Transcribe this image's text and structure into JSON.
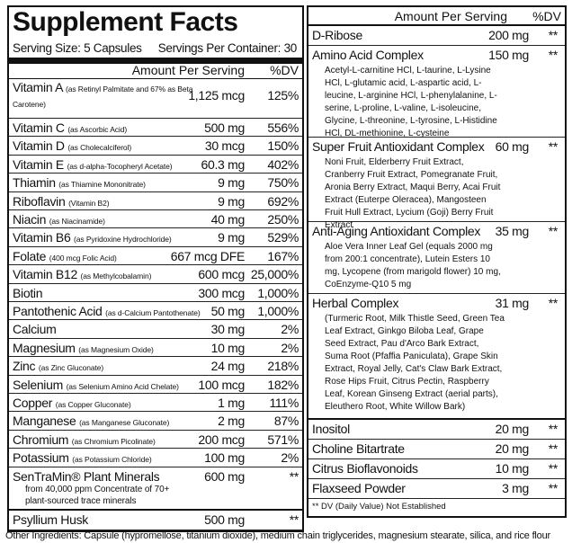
{
  "left": {
    "title": "Supplement Facts",
    "serving_size": "Serving Size: 5 Capsules",
    "servings_per_container": "Servings Per Container: 30",
    "header": {
      "amount": "Amount Per Serving",
      "dv": "%DV"
    },
    "rows": [
      {
        "name": "Vitamin A",
        "source": "(as Retinyl Palmitate and 67% as Beta Carotene)",
        "amount": "1,125 mcg",
        "dv": "125%"
      },
      {
        "name": "Vitamin C",
        "source": "(as Ascorbic Acid)",
        "amount": "500 mg",
        "dv": "556%"
      },
      {
        "name": "Vitamin D",
        "source": "(as Cholecalciferol)",
        "amount": "30 mcg",
        "dv": "150%"
      },
      {
        "name": "Vitamin E",
        "source": "(as d-alpha-Tocopheryl Acetate)",
        "amount": "60.3 mg",
        "dv": "402%"
      },
      {
        "name": "Thiamin",
        "source": "(as Thiamine Mononitrate)",
        "amount": "9 mg",
        "dv": "750%"
      },
      {
        "name": "Riboflavin",
        "source": "(Vitamin B2)",
        "amount": "9 mg",
        "dv": "692%"
      },
      {
        "name": "Niacin",
        "source": "(as Niacinamide)",
        "amount": "40 mg",
        "dv": "250%"
      },
      {
        "name": "Vitamin B6",
        "source": "(as Pyridoxine Hydrochloride)",
        "amount": "9 mg",
        "dv": "529%"
      },
      {
        "name": "Folate",
        "source": "(400 mcg Folic Acid)",
        "amount": "667 mcg DFE",
        "dv": "167%"
      },
      {
        "name": "Vitamin B12",
        "source": "(as Methylcobalamin)",
        "amount": "600 mcg",
        "dv": "25,000%"
      },
      {
        "name": "Biotin",
        "amount": "300 mcg",
        "dv": "1,000%"
      },
      {
        "name": "Pantothenic Acid",
        "source": "(as d-Calcium Pantothenate)",
        "amount": "50 mg",
        "dv": "1,000%"
      },
      {
        "name": "Calcium",
        "amount": "30 mg",
        "dv": "2%"
      },
      {
        "name": "Magnesium",
        "source": "(as Magnesium Oxide)",
        "amount": "10 mg",
        "dv": "2%"
      },
      {
        "name": "Zinc",
        "source": "(as Zinc Gluconate)",
        "amount": "24 mg",
        "dv": "218%"
      },
      {
        "name": "Selenium",
        "source": "(as Selenium Amino Acid Chelate)",
        "amount": "100 mcg",
        "dv": "182%"
      },
      {
        "name": "Copper",
        "source": "(as Copper Gluconate)",
        "amount": "1 mg",
        "dv": "111%"
      },
      {
        "name": "Manganese",
        "source": "(as Manganese Gluconate)",
        "amount": "2 mg",
        "dv": "87%"
      },
      {
        "name": "Chromium",
        "source": "(as Chromium Picolinate)",
        "amount": "200 mcg",
        "dv": "571%"
      },
      {
        "name": "Potassium",
        "source": "(as Potassium Chloride)",
        "amount": "100 mg",
        "dv": "2%"
      },
      {
        "name": "SenTraMin® Plant Minerals",
        "source": "from 40,000 ppm Concentrate of 70+ plant-sourced trace minerals",
        "amount": "600 mg",
        "dv": "**"
      },
      {
        "name": "Psyllium Husk",
        "amount": "500 mg",
        "dv": "**"
      }
    ]
  },
  "right": {
    "header": {
      "amount": "Amount Per Serving",
      "dv": "%DV"
    },
    "rows": [
      {
        "name": "D-Ribose",
        "amount": "200 mg",
        "dv": "**"
      },
      {
        "name": "Amino Acid Complex",
        "amount": "150 mg",
        "dv": "**",
        "description": "Acetyl-L-carnitine HCl, L-taurine, L-Lysine HCl, L-glutamic acid, L-aspartic acid, L-leucine, L-arginine HCl, L-phenylalanine, L-serine, L-proline, L-valine, L-isoleucine, Glycine, L-threonine, L-tyrosine, L-Histidine HCl, DL-methionine, L-cysteine"
      },
      {
        "name": "Super Fruit Antioxidant Complex",
        "amount": "60 mg",
        "dv": "**",
        "description": "Noni Fruit, Elderberry Fruit Extract, Cranberry Fruit Extract, Pomegranate Fruit, Aronia Berry Extract, Maqui Berry, Acai Fruit Extract (Euterpe Oleracea), Mangosteen Fruit Hull Extract, Lycium (Goji) Berry Fruit Extract"
      },
      {
        "name": "Anti-Aging Antioxidant Complex",
        "amount": "35 mg",
        "dv": "**",
        "description": "Aloe Vera Inner Leaf Gel (equals 2000 mg from 200:1 concentrate), Lutein Esters 10 mg, Lycopene (from marigold flower) 10 mg, CoEnzyme-Q10 5 mg"
      },
      {
        "name": "Herbal Complex",
        "amount": "31 mg",
        "dv": "**",
        "description": "(Turmeric Root, Milk Thistle Seed, Green Tea Leaf Extract, Ginkgo Biloba Leaf, Grape Seed Extract, Pau d'Arco Bark Extract, Suma Root (Pfaffia Paniculata), Grape Skin Extract, Royal Jelly, Cat's Claw Bark Extract, Rose Hips Fruit, Citrus Pectin, Raspberry Leaf, Korean Ginseng Extract (aerial parts), Eleuthero Root, White Willow Bark)"
      },
      {
        "name": "Inositol",
        "amount": "20 mg",
        "dv": "**"
      },
      {
        "name": "Choline Bitartrate",
        "amount": "20 mg",
        "dv": "**"
      },
      {
        "name": "Citrus Bioflavonoids",
        "amount": "10 mg",
        "dv": "**"
      },
      {
        "name": "Flaxseed Powder",
        "amount": "3 mg",
        "dv": "**"
      }
    ],
    "footnote": "** DV (Daily Value) Not Established"
  },
  "other_ingredients": "Other Ingredients: Capsule (hypromellose, titanium dioxide), medium chain triglycerides, magnesium stearate, silica, and rice flour"
}
